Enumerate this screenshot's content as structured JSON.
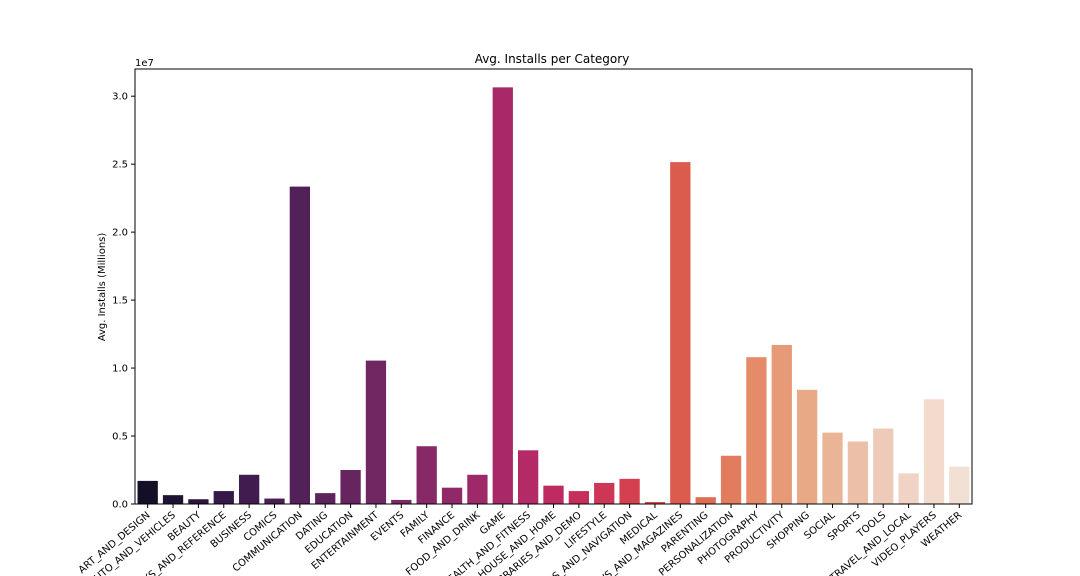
{
  "chart_data": {
    "type": "bar",
    "title": "Avg. Installs per Category",
    "xlabel": "",
    "ylabel": "Avg. Installs (Millions)",
    "y_offset_text": "1e7",
    "ylim": [
      0,
      32000000
    ],
    "yticks": [
      0,
      5000000,
      10000000,
      15000000,
      20000000,
      25000000,
      30000000
    ],
    "ytick_labels": [
      "0.0",
      "0.5",
      "1.0",
      "1.5",
      "2.0",
      "2.5",
      "3.0"
    ],
    "grid": false,
    "categories": [
      "ART_AND_DESIGN",
      "AUTO_AND_VEHICLES",
      "BEAUTY",
      "BOOKS_AND_REFERENCE",
      "BUSINESS",
      "COMICS",
      "COMMUNICATION",
      "DATING",
      "EDUCATION",
      "ENTERTAINMENT",
      "EVENTS",
      "FAMILY",
      "FINANCE",
      "FOOD_AND_DRINK",
      "GAME",
      "HEALTH_AND_FITNESS",
      "HOUSE_AND_HOME",
      "LIBRARIES_AND_DEMO",
      "LIFESTYLE",
      "MAPS_AND_NAVIGATION",
      "MEDICAL",
      "NEWS_AND_MAGAZINES",
      "PARENTING",
      "PERSONALIZATION",
      "PHOTOGRAPHY",
      "PRODUCTIVITY",
      "SHOPPING",
      "SOCIAL",
      "SPORTS",
      "TOOLS",
      "TRAVEL_AND_LOCAL",
      "VIDEO_PLAYERS",
      "WEATHER"
    ],
    "values": [
      1700000,
      650000,
      350000,
      950000,
      2150000,
      400000,
      23350000,
      800000,
      2500000,
      10550000,
      300000,
      4250000,
      1200000,
      2150000,
      30650000,
      3950000,
      1350000,
      950000,
      1550000,
      1850000,
      150000,
      25150000,
      500000,
      3550000,
      10800000,
      11700000,
      8400000,
      5250000,
      4600000,
      5550000,
      2250000,
      7700000,
      2750000
    ],
    "colors": [
      "#140e27",
      "#1f1232",
      "#2a163c",
      "#351946",
      "#401c4f",
      "#4a1e55",
      "#53215a",
      "#5d235d",
      "#672560",
      "#712762",
      "#7c2864",
      "#872966",
      "#922967",
      "#9d2968",
      "#a82968",
      "#b32a66",
      "#bd2b61",
      "#c62f5b",
      "#ce3655",
      "#d4404f",
      "#d84c4a",
      "#db5c4d",
      "#df6d54",
      "#e27c5e",
      "#e58b69",
      "#e69a78",
      "#e8a987",
      "#eab597",
      "#ecc0a8",
      "#eecbb8",
      "#f0d3c4",
      "#f2dacd",
      "#f3e0d5"
    ]
  }
}
